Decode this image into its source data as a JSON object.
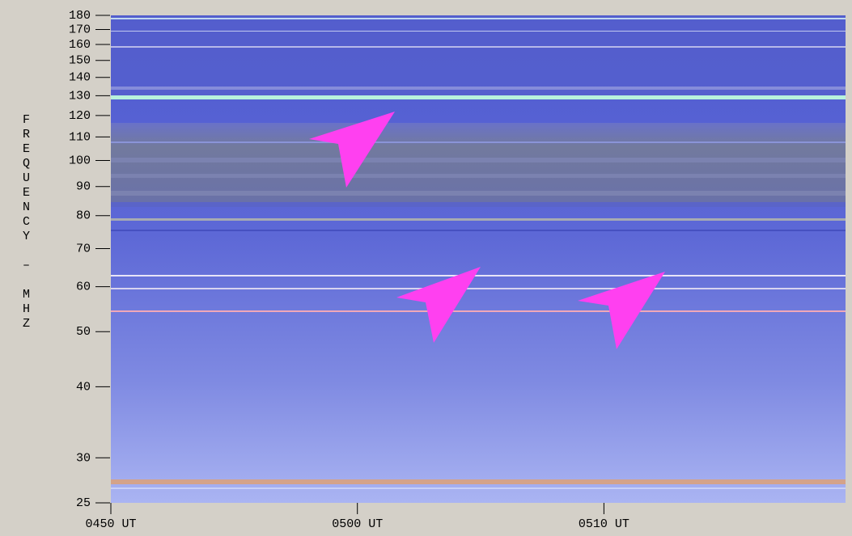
{
  "chart_data": {
    "type": "spectrogram",
    "y_label": "FREQUENCY – MHZ",
    "ylim": [
      25,
      180
    ],
    "log_y": true,
    "yticks": [
      25,
      30,
      40,
      50,
      60,
      70,
      80,
      90,
      100,
      110,
      120,
      130,
      140,
      150,
      160,
      170,
      180
    ],
    "xlim": [
      290,
      319.8
    ],
    "xticks": [
      {
        "value": 290,
        "label": "0450 UT"
      },
      {
        "value": 300,
        "label": "0500 UT"
      },
      {
        "value": 310,
        "label": "0510 UT"
      }
    ]
  }
}
